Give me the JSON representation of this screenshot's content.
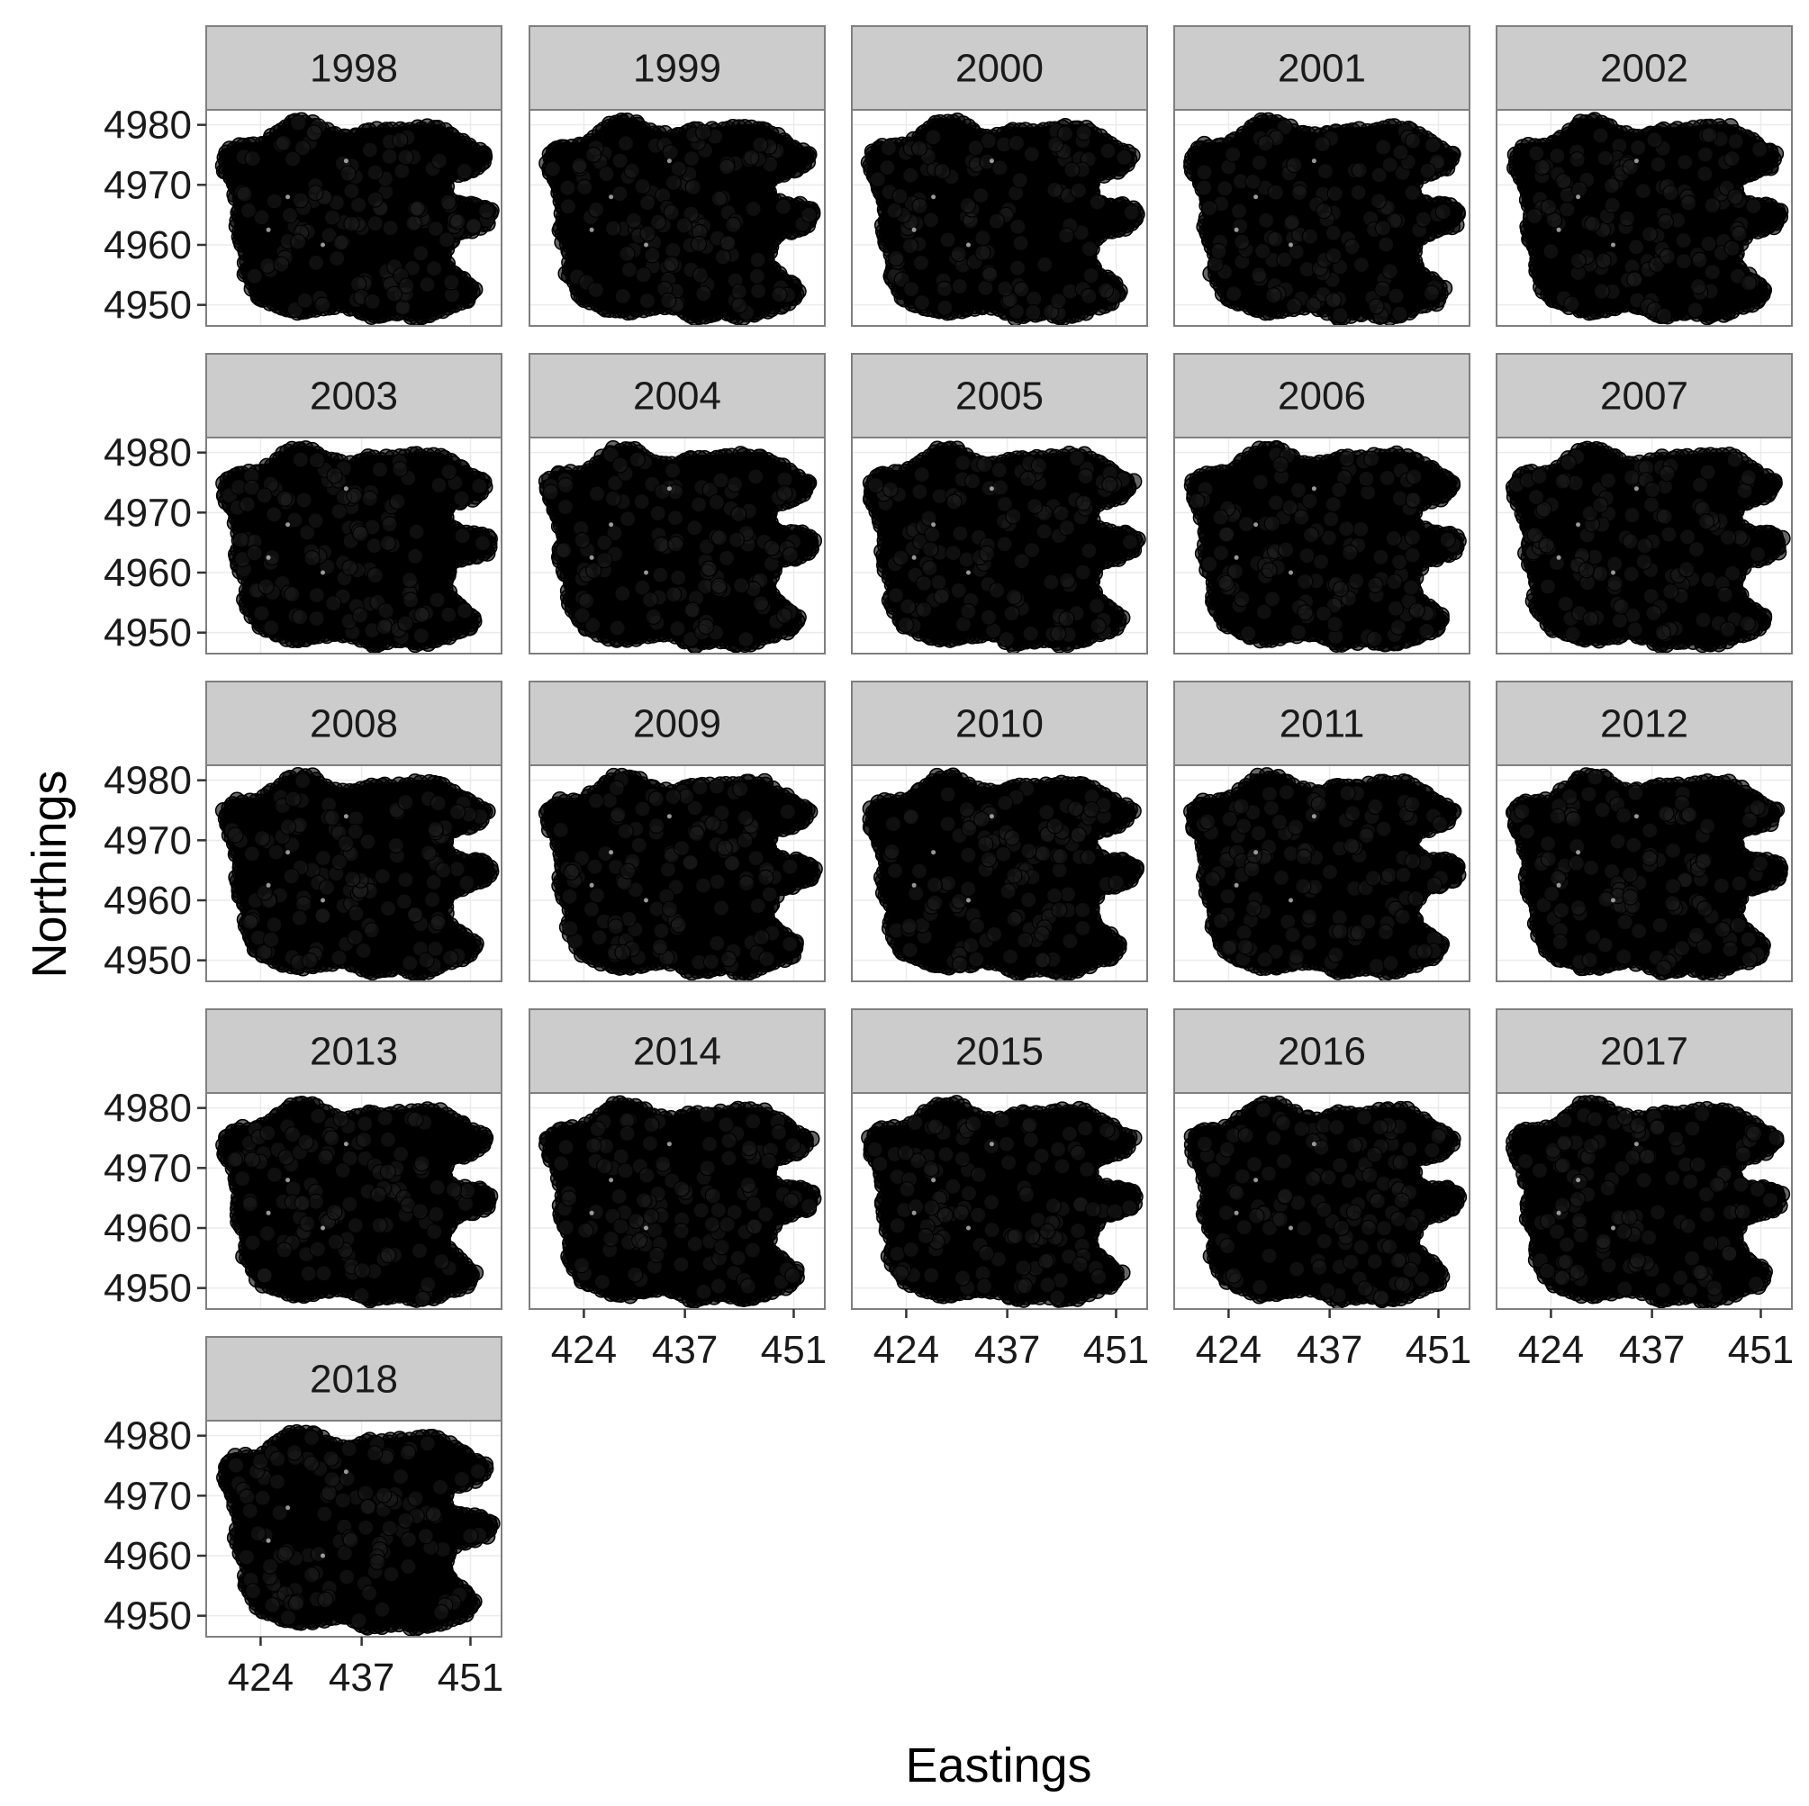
{
  "chart_data": {
    "type": "scatter",
    "facet_by": "year",
    "facets": [
      "1998",
      "1999",
      "2000",
      "2001",
      "2002",
      "2003",
      "2004",
      "2005",
      "2006",
      "2007",
      "2008",
      "2009",
      "2010",
      "2011",
      "2012",
      "2013",
      "2014",
      "2015",
      "2016",
      "2017",
      "2018"
    ],
    "facet_columns": 5,
    "xlabel": "Eastings",
    "ylabel": "Northings",
    "x_ticks": [
      424,
      437,
      451
    ],
    "y_ticks": [
      4950,
      4960,
      4970,
      4980
    ],
    "xlim": [
      417,
      455
    ],
    "ylim": [
      4946.5,
      4982.5
    ],
    "grid": true,
    "point_color": "#000000",
    "point_alpha": 0.6,
    "point_style": "filled circles with black outline, densely overlapping",
    "outline_polygon": [
      [
        419.5,
        4975
      ],
      [
        421,
        4976.5
      ],
      [
        424,
        4976.5
      ],
      [
        426,
        4978.5
      ],
      [
        428,
        4980.5
      ],
      [
        430.5,
        4980.5
      ],
      [
        433,
        4978.5
      ],
      [
        436,
        4978
      ],
      [
        438,
        4979
      ],
      [
        441,
        4979
      ],
      [
        444,
        4979.5
      ],
      [
        447,
        4979.5
      ],
      [
        449.5,
        4977.5
      ],
      [
        451,
        4976
      ],
      [
        453,
        4975
      ],
      [
        452,
        4973
      ],
      [
        450,
        4972
      ],
      [
        448,
        4971.5
      ],
      [
        447.5,
        4969.5
      ],
      [
        448,
        4967.5
      ],
      [
        450,
        4966.5
      ],
      [
        452,
        4966.5
      ],
      [
        453.5,
        4965.5
      ],
      [
        453,
        4963.5
      ],
      [
        451,
        4962.5
      ],
      [
        449,
        4962
      ],
      [
        448,
        4960
      ],
      [
        447.5,
        4957.5
      ],
      [
        448.5,
        4955.5
      ],
      [
        450,
        4954
      ],
      [
        451.5,
        4952.5
      ],
      [
        450.5,
        4950.5
      ],
      [
        448,
        4949.5
      ],
      [
        446,
        4948.5
      ],
      [
        444,
        4948
      ],
      [
        442,
        4949
      ],
      [
        440,
        4948.5
      ],
      [
        438,
        4948
      ],
      [
        436,
        4949.5
      ],
      [
        434,
        4950
      ],
      [
        432,
        4949.5
      ],
      [
        430,
        4949
      ],
      [
        428,
        4949
      ],
      [
        426,
        4950
      ],
      [
        424,
        4951
      ],
      [
        423,
        4953
      ],
      [
        422,
        4955.5
      ],
      [
        422.5,
        4958
      ],
      [
        421.5,
        4960.5
      ],
      [
        421,
        4963
      ],
      [
        421.5,
        4966
      ],
      [
        421,
        4968
      ],
      [
        420.5,
        4970.5
      ],
      [
        419.5,
        4972.5
      ]
    ],
    "interior_gaps": [
      [
        435,
        4974
      ],
      [
        427.5,
        4968
      ],
      [
        425,
        4962.5
      ],
      [
        432,
        4960
      ]
    ]
  }
}
